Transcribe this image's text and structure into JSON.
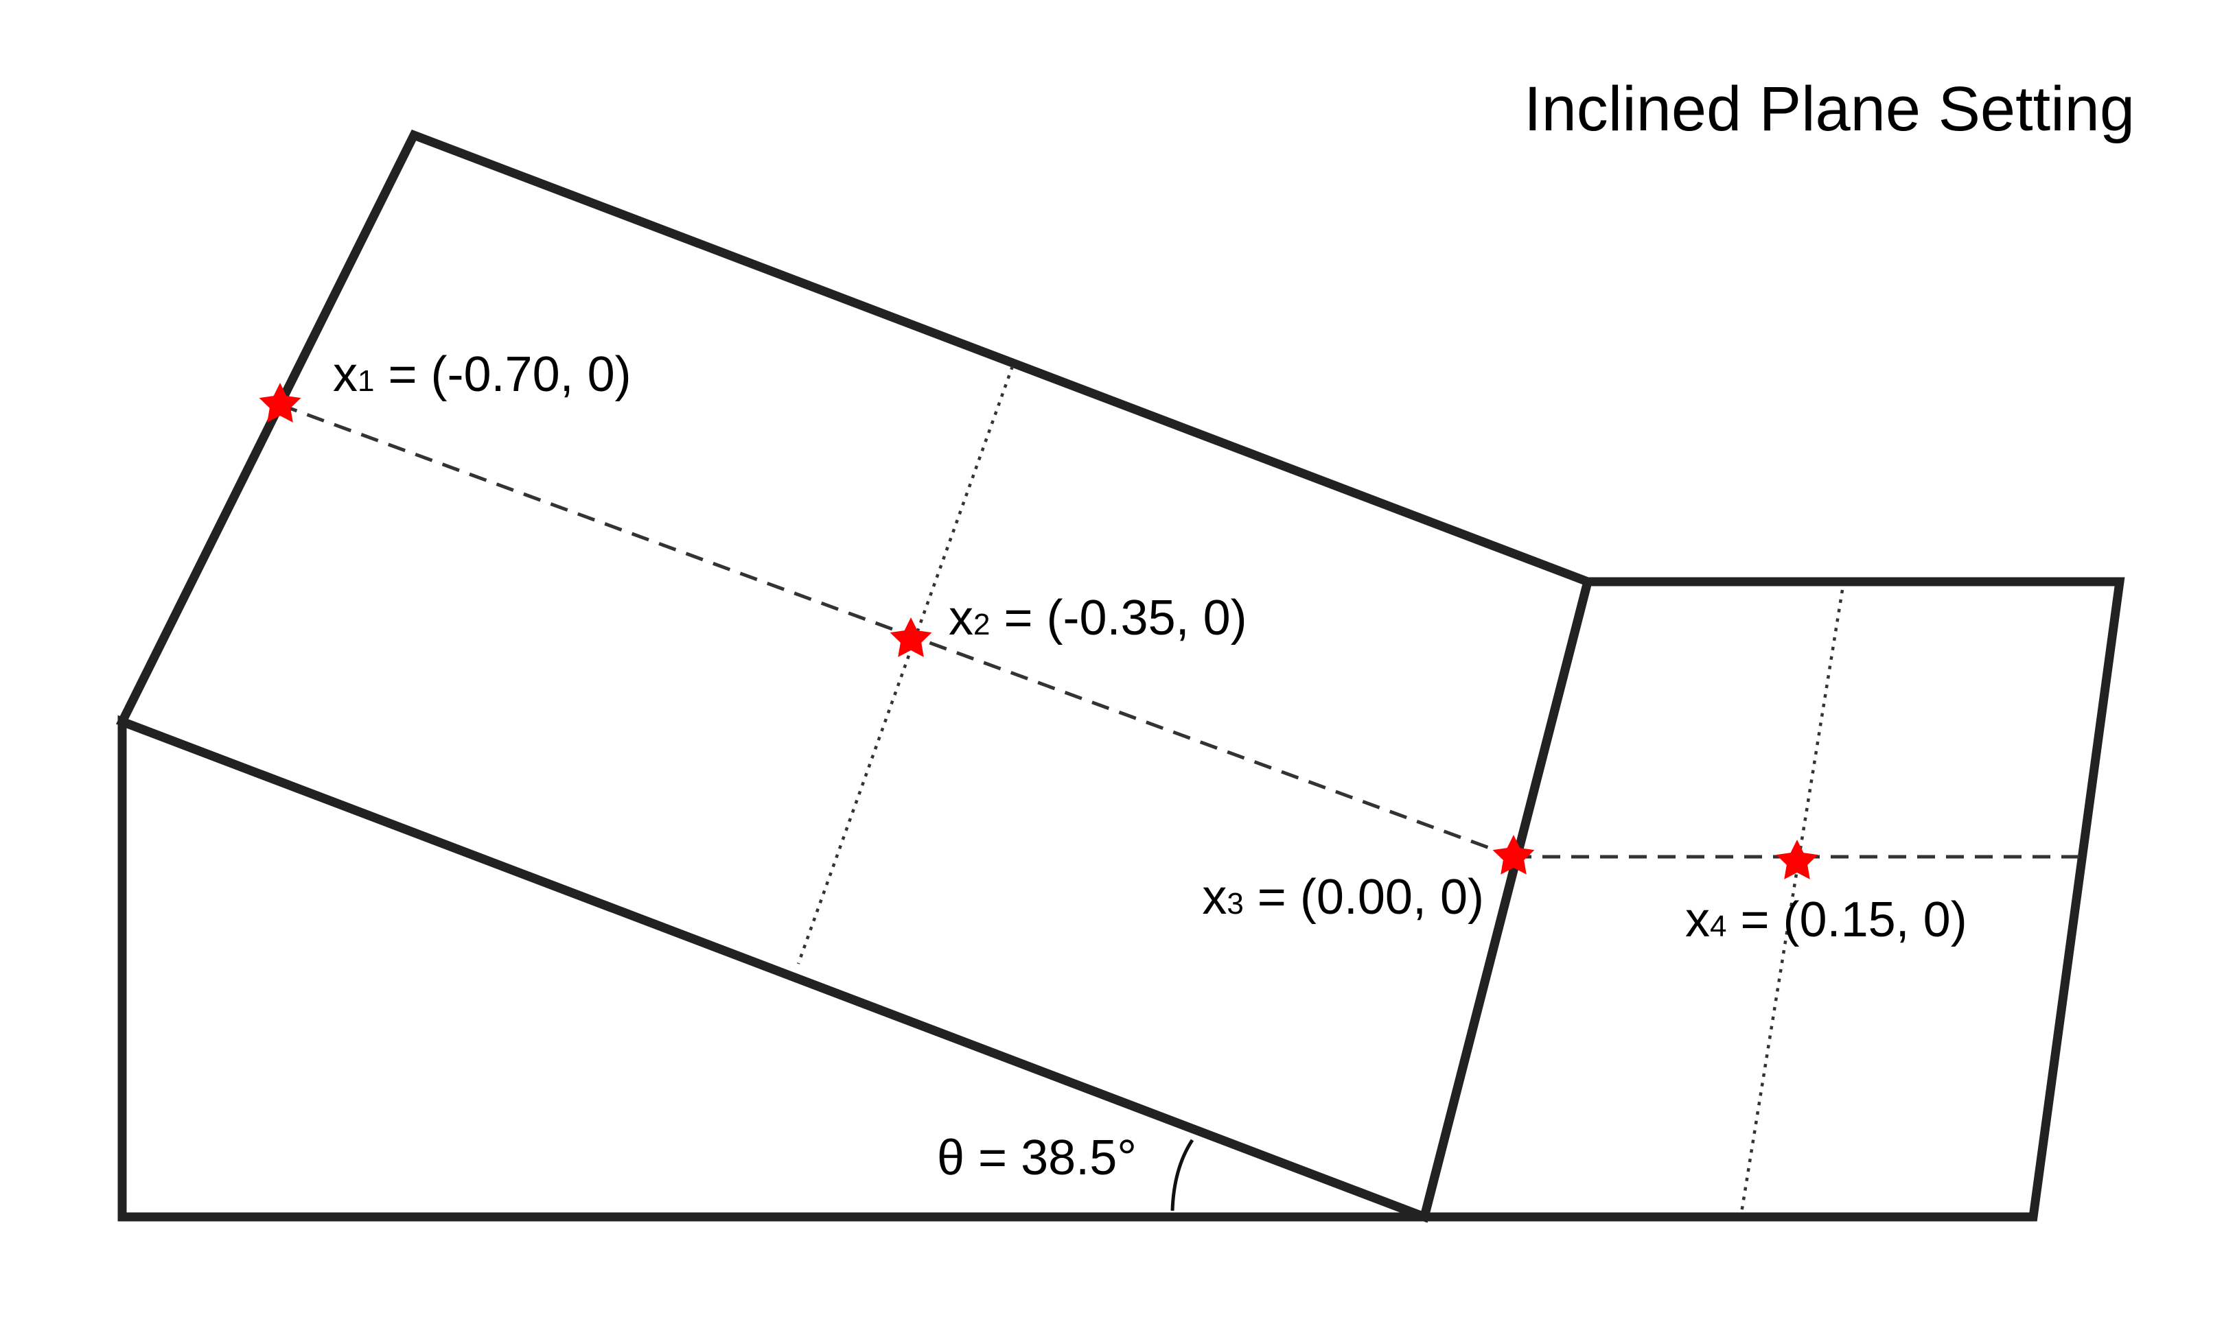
{
  "title": "Inclined Plane Setting",
  "angle_label": "θ = 38.5°",
  "colors": {
    "line": "#222222",
    "marker": "#ff0000"
  },
  "points": [
    {
      "id": "x1",
      "base": "x",
      "sub": "1",
      "coords": " = (-0.70, 0)"
    },
    {
      "id": "x2",
      "base": "x",
      "sub": "2",
      "coords": " = (-0.35, 0)"
    },
    {
      "id": "x3",
      "base": "x",
      "sub": "3",
      "coords": " = (0.00, 0)"
    },
    {
      "id": "x4",
      "base": "x",
      "sub": "4",
      "coords": " = (0.15, 0)"
    }
  ]
}
